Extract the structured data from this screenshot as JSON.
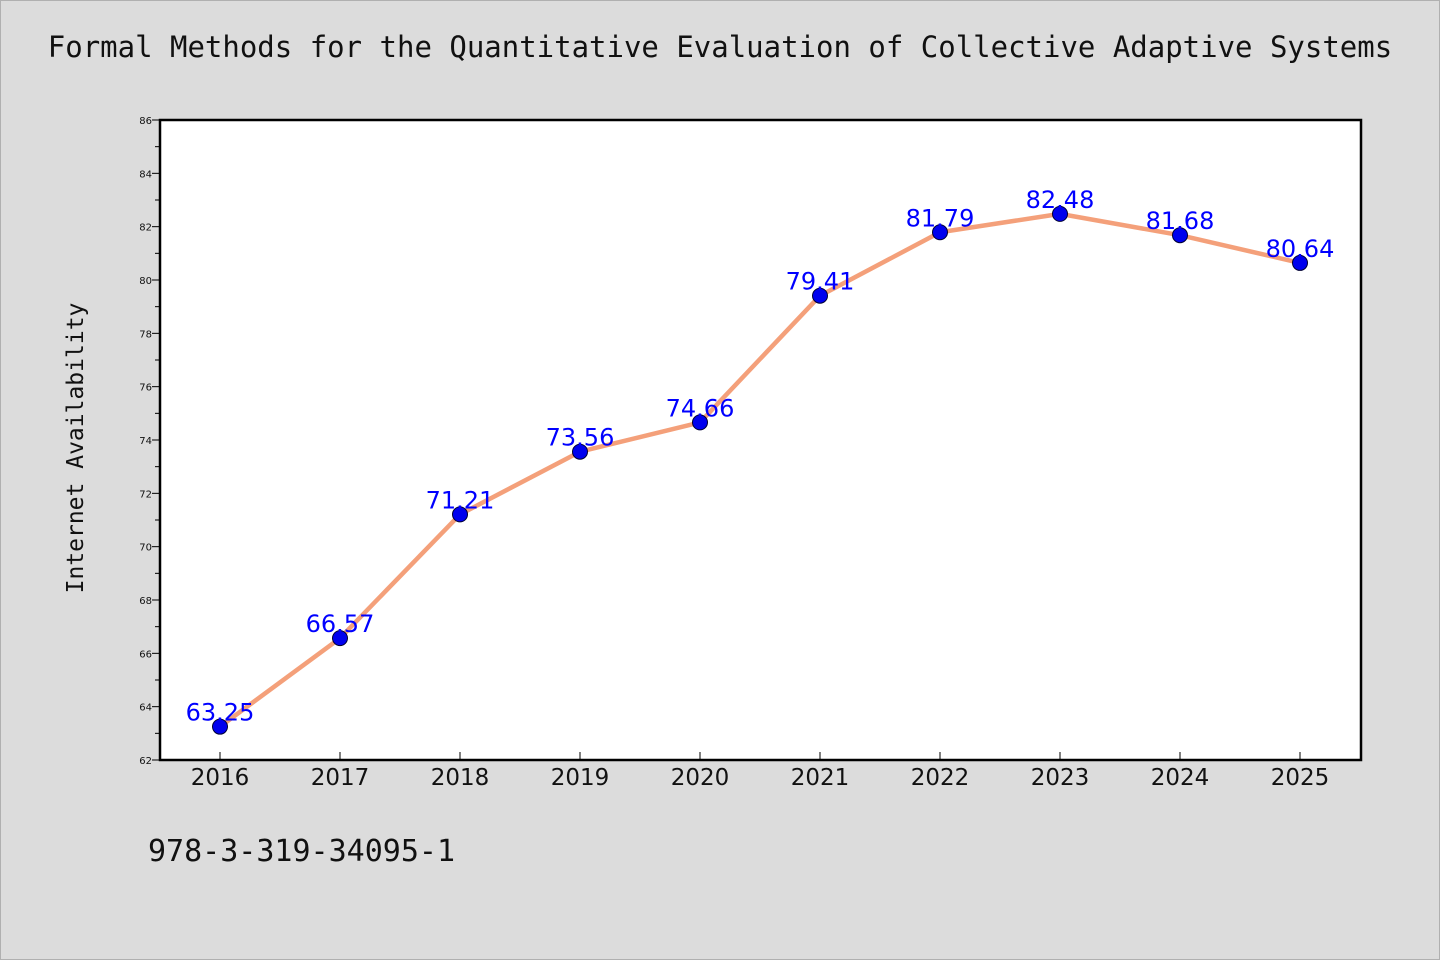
{
  "chart_data": {
    "type": "line",
    "title": "Formal Methods for the Quantitative Evaluation of Collective Adaptive Systems",
    "xlabel": "",
    "ylabel": "Internet Availability",
    "categories": [
      "2016",
      "2017",
      "2018",
      "2019",
      "2020",
      "2021",
      "2022",
      "2023",
      "2024",
      "2025"
    ],
    "series": [
      {
        "values": [
          63.25,
          66.57,
          71.21,
          73.56,
          74.66,
          79.41,
          81.79,
          82.48,
          81.68,
          80.64
        ]
      }
    ],
    "data_labels": [
      "63.25",
      "66.57",
      "71.21",
      "73.56",
      "74.66",
      "79.41",
      "81.79",
      "82.48",
      "81.68",
      "80.64"
    ],
    "ylim": [
      62,
      86
    ],
    "yticks": [
      62,
      64,
      66,
      68,
      70,
      72,
      74,
      76,
      78,
      80,
      82,
      84,
      86
    ],
    "grid": false,
    "legend": "none",
    "colors": {
      "line": "#f4a07a",
      "marker": "#0000ee",
      "label": "#0000ff",
      "background": "#dcdcdc",
      "plot_area": "#ffffff"
    }
  },
  "footer": {
    "code": "978-3-319-34095-1"
  }
}
